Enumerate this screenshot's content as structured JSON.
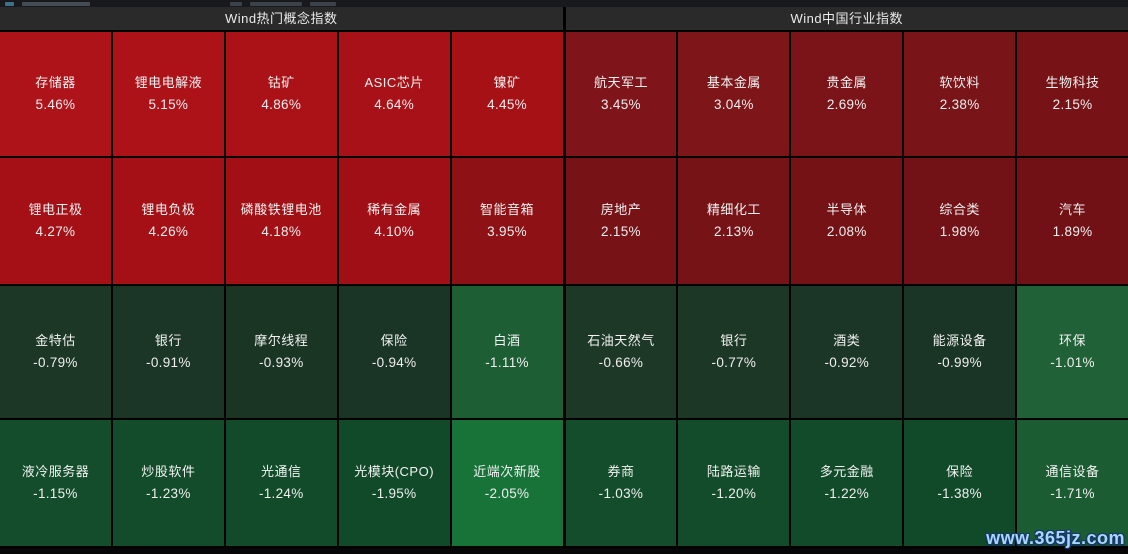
{
  "toolbar": {
    "note": "clipped toolbar strip, text not legible"
  },
  "header": {
    "left_title": "Wind热门概念指数",
    "right_title": "Wind中国行业指数"
  },
  "watermark": {
    "text": "www.365jz.com",
    "color": "#a9d7f8"
  },
  "colors": {
    "positive_base": "#a81217",
    "negative_base": "#1b3626",
    "grid_line": "#000000",
    "header_bg": "#2a2a2a",
    "cell_text": "#f2f2f2"
  },
  "chart_data": {
    "type": "heatmap",
    "title": "Wind指数热力图",
    "legend_note": "red = positive change, green = negative change",
    "sections": [
      {
        "title": "Wind热门概念指数",
        "rows": [
          [
            {
              "name": "存储器",
              "pct": "5.46%",
              "value": 5.46,
              "color": "#ae1319"
            },
            {
              "name": "锂电电解液",
              "pct": "5.15%",
              "value": 5.15,
              "color": "#ac1218"
            },
            {
              "name": "钴矿",
              "pct": "4.86%",
              "value": 4.86,
              "color": "#aa1217"
            },
            {
              "name": "ASIC芯片",
              "pct": "4.64%",
              "value": 4.64,
              "color": "#a81117"
            },
            {
              "name": "镍矿",
              "pct": "4.45%",
              "value": 4.45,
              "color": "#a61116"
            }
          ],
          [
            {
              "name": "锂电正极",
              "pct": "4.27%",
              "value": 4.27,
              "color": "#a41016"
            },
            {
              "name": "锂电负极",
              "pct": "4.26%",
              "value": 4.26,
              "color": "#a41016"
            },
            {
              "name": "磷酸铁锂电池",
              "pct": "4.18%",
              "value": 4.18,
              "color": "#a21015"
            },
            {
              "name": "稀有金属",
              "pct": "4.10%",
              "value": 4.1,
              "color": "#a00f15"
            },
            {
              "name": "智能音箱",
              "pct": "3.95%",
              "value": 3.95,
              "color": "#8e1115"
            }
          ],
          [
            {
              "name": "金特估",
              "pct": "-0.79%",
              "value": -0.79,
              "color": "#1c3726"
            },
            {
              "name": "银行",
              "pct": "-0.91%",
              "value": -0.91,
              "color": "#1b3626"
            },
            {
              "name": "摩尔线程",
              "pct": "-0.93%",
              "value": -0.93,
              "color": "#1b3525"
            },
            {
              "name": "保险",
              "pct": "-0.94%",
              "value": -0.94,
              "color": "#1a3525"
            },
            {
              "name": "白酒",
              "pct": "-1.11%",
              "value": -1.11,
              "color": "#1e5e35"
            }
          ],
          [
            {
              "name": "液冷服务器",
              "pct": "-1.15%",
              "value": -1.15,
              "color": "#134d2b"
            },
            {
              "name": "炒股软件",
              "pct": "-1.23%",
              "value": -1.23,
              "color": "#124c2a"
            },
            {
              "name": "光通信",
              "pct": "-1.24%",
              "value": -1.24,
              "color": "#124b2a"
            },
            {
              "name": "光模块(CPO)",
              "pct": "-1.95%",
              "value": -1.95,
              "color": "#114a29"
            },
            {
              "name": "近端次新股",
              "pct": "-2.05%",
              "value": -2.05,
              "color": "#187339"
            }
          ]
        ]
      },
      {
        "title": "Wind中国行业指数",
        "rows": [
          [
            {
              "name": "航天军工",
              "pct": "3.45%",
              "value": 3.45,
              "color": "#7f151a"
            },
            {
              "name": "基本金属",
              "pct": "3.04%",
              "value": 3.04,
              "color": "#7d1519"
            },
            {
              "name": "贵金属",
              "pct": "2.69%",
              "value": 2.69,
              "color": "#7b1418"
            },
            {
              "name": "软饮料",
              "pct": "2.38%",
              "value": 2.38,
              "color": "#791418"
            },
            {
              "name": "生物科技",
              "pct": "2.15%",
              "value": 2.15,
              "color": "#771317"
            }
          ],
          [
            {
              "name": "房地产",
              "pct": "2.15%",
              "value": 2.15,
              "color": "#771317"
            },
            {
              "name": "精细化工",
              "pct": "2.13%",
              "value": 2.13,
              "color": "#761317"
            },
            {
              "name": "半导体",
              "pct": "2.08%",
              "value": 2.08,
              "color": "#751216"
            },
            {
              "name": "综合类",
              "pct": "1.98%",
              "value": 1.98,
              "color": "#731216"
            },
            {
              "name": "汽车",
              "pct": "1.89%",
              "value": 1.89,
              "color": "#721115"
            }
          ],
          [
            {
              "name": "石油天然气",
              "pct": "-0.66%",
              "value": -0.66,
              "color": "#1d3827"
            },
            {
              "name": "银行",
              "pct": "-0.77%",
              "value": -0.77,
              "color": "#1c3726"
            },
            {
              "name": "酒类",
              "pct": "-0.92%",
              "value": -0.92,
              "color": "#1b3626"
            },
            {
              "name": "能源设备",
              "pct": "-0.99%",
              "value": -0.99,
              "color": "#1a3525"
            },
            {
              "name": "环保",
              "pct": "-1.01%",
              "value": -1.01,
              "color": "#216137"
            }
          ],
          [
            {
              "name": "券商",
              "pct": "-1.03%",
              "value": -1.03,
              "color": "#134d2b"
            },
            {
              "name": "陆路运输",
              "pct": "-1.20%",
              "value": -1.2,
              "color": "#124c2a"
            },
            {
              "name": "多元金融",
              "pct": "-1.22%",
              "value": -1.22,
              "color": "#124b2a"
            },
            {
              "name": "保险",
              "pct": "-1.38%",
              "value": -1.38,
              "color": "#114a29"
            },
            {
              "name": "通信设备",
              "pct": "-1.71%",
              "value": -1.71,
              "color": "#1b5c32"
            }
          ]
        ]
      }
    ]
  }
}
